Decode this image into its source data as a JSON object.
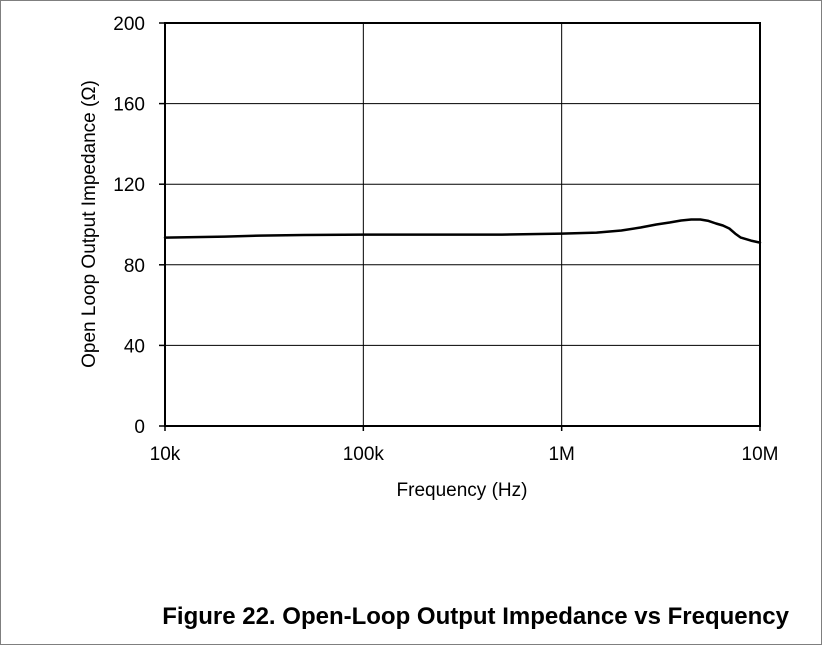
{
  "caption": "Figure 22. Open-Loop Output Impedance vs Frequency",
  "chart_data": {
    "type": "line",
    "title": "",
    "xlabel": "Frequency (Hz)",
    "ylabel": "Open Loop Output Impedance (Ω)",
    "x_scale": "log",
    "xlim": [
      10000,
      10000000
    ],
    "ylim": [
      0,
      200
    ],
    "x_ticks": [
      10000,
      100000,
      1000000,
      10000000
    ],
    "x_tick_labels": [
      "10k",
      "100k",
      "1M",
      "10M"
    ],
    "y_ticks": [
      0,
      40,
      80,
      120,
      160,
      200
    ],
    "y_tick_labels": [
      "0",
      "40",
      "80",
      "120",
      "160",
      "200"
    ],
    "grid": true,
    "line_color": "#000000",
    "series": [
      {
        "x": [
          10000,
          20000,
          30000,
          50000,
          100000,
          200000,
          500000,
          1000000,
          1500000,
          2000000,
          2500000,
          3000000,
          3500000,
          4000000,
          4500000,
          5000000,
          5500000,
          6000000,
          6500000,
          7000000,
          7500000,
          8000000,
          9000000,
          10000000
        ],
        "y": [
          93.5,
          94.0,
          94.5,
          94.8,
          95.0,
          95.0,
          95.0,
          95.5,
          96.0,
          97.0,
          98.5,
          100.0,
          101.0,
          102.0,
          102.5,
          102.5,
          101.8,
          100.5,
          99.5,
          98.0,
          95.5,
          93.5,
          92.0,
          91.0
        ]
      }
    ]
  }
}
